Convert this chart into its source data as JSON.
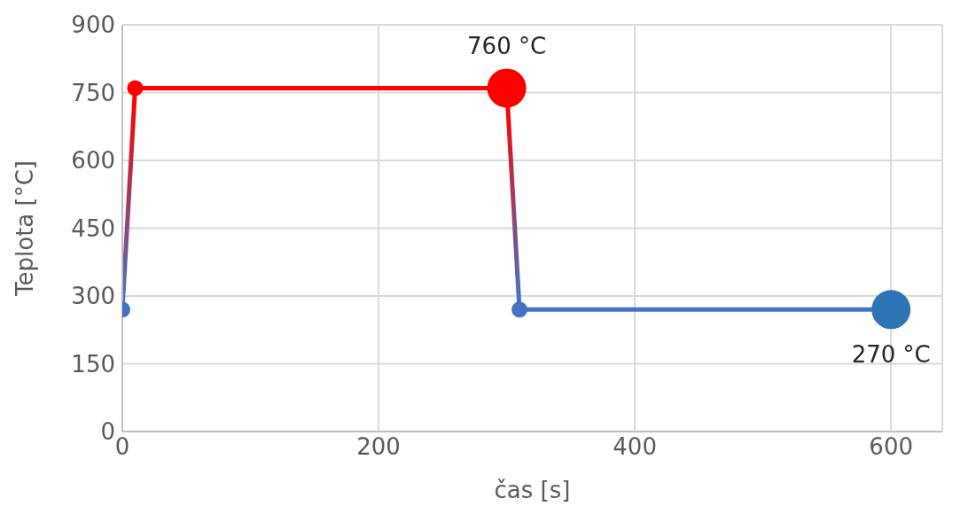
{
  "chart_data": {
    "type": "line",
    "xlabel": "čas [s]",
    "ylabel": "Teplota [°C]",
    "x": [
      0,
      10,
      300,
      310,
      600
    ],
    "series": [
      {
        "colors": [
          "#4472c4",
          "#ff0000",
          "#ff0000",
          "#4472c4",
          "#2e75b6"
        ],
        "values": [
          270,
          760,
          760,
          270,
          270
        ]
      }
    ],
    "xlim": [
      0,
      640
    ],
    "xticks": [
      0,
      200,
      400,
      600
    ],
    "ylim": [
      0,
      900
    ],
    "yticks": [
      0,
      150,
      300,
      450,
      600,
      750,
      900
    ],
    "grid": true,
    "marker": "circle",
    "line_style": "solid",
    "annotations": [
      {
        "text": "760 °C",
        "x": 300,
        "y": 760
      },
      {
        "text": "270 °C",
        "x": 600,
        "y": 270
      }
    ]
  }
}
